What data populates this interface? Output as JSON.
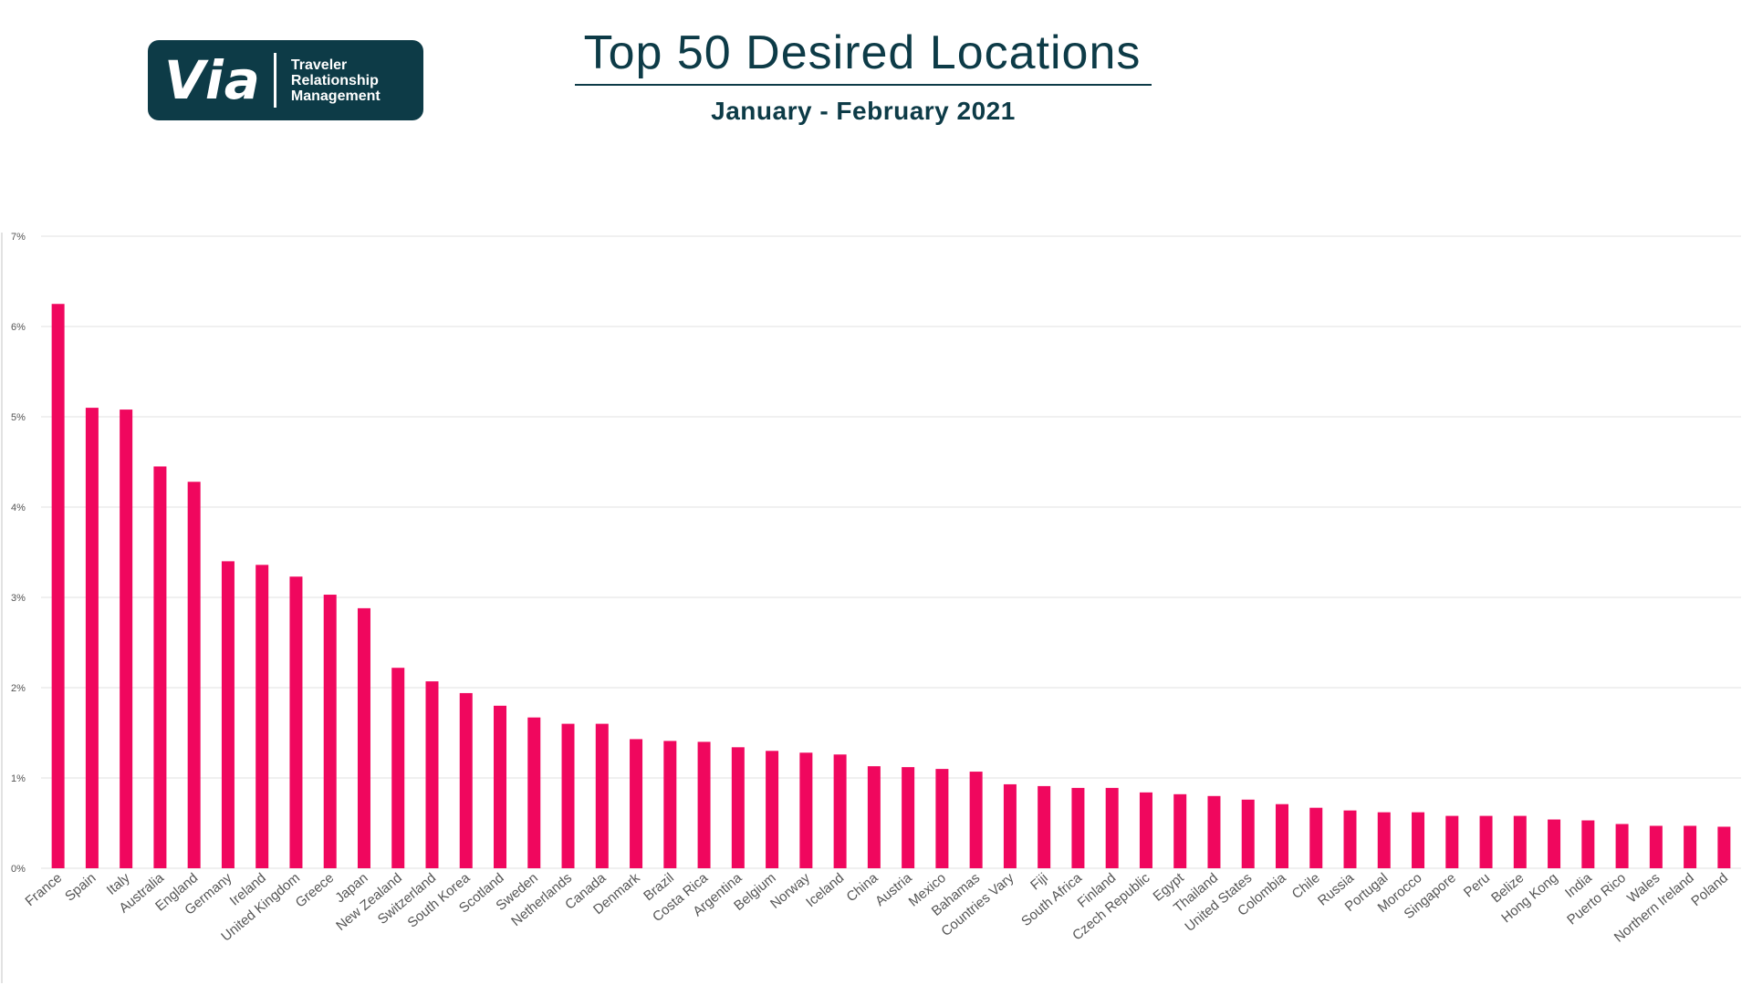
{
  "logo": {
    "word": "Via",
    "lines": [
      "Traveler",
      "Relationship",
      "Management"
    ]
  },
  "header": {
    "title": "Top 50 Desired Locations",
    "subtitle": "January - February 2021"
  },
  "colors": {
    "bar": "#f0075e",
    "brand": "#0d3b47",
    "grid": "#e2e2e2",
    "tick_text": "#555555"
  },
  "chart_data": {
    "type": "bar",
    "title": "Top 50 Desired Locations",
    "subtitle": "January - February 2021",
    "xlabel": "",
    "ylabel": "",
    "ylim": [
      0,
      7
    ],
    "yticks": [
      0,
      1,
      2,
      3,
      4,
      5,
      6,
      7
    ],
    "ytick_labels": [
      "0%",
      "1%",
      "2%",
      "3%",
      "4%",
      "5%",
      "6%",
      "7%"
    ],
    "grid": true,
    "legend": "none",
    "categories": [
      "France",
      "Spain",
      "Italy",
      "Australia",
      "England",
      "Germany",
      "Ireland",
      "United Kingdom",
      "Greece",
      "Japan",
      "New Zealand",
      "Switzerland",
      "South Korea",
      "Scotland",
      "Sweden",
      "Netherlands",
      "Canada",
      "Denmark",
      "Brazil",
      "Costa Rica",
      "Argentina",
      "Belgium",
      "Norway",
      "Iceland",
      "China",
      "Austria",
      "Mexico",
      "Bahamas",
      "Countries Vary",
      "Fiji",
      "South Africa",
      "Finland",
      "Czech Republic",
      "Egypt",
      "Thailand",
      "United States",
      "Colombia",
      "Chile",
      "Russia",
      "Portugal",
      "Morocco",
      "Singapore",
      "Peru",
      "Belize",
      "Hong Kong",
      "India",
      "Puerto Rico",
      "Wales",
      "Northern Ireland",
      "Poland"
    ],
    "values": [
      6.25,
      5.1,
      5.08,
      4.45,
      4.28,
      3.4,
      3.36,
      3.23,
      3.03,
      2.88,
      2.22,
      2.07,
      1.94,
      1.8,
      1.67,
      1.6,
      1.6,
      1.43,
      1.41,
      1.4,
      1.34,
      1.3,
      1.28,
      1.26,
      1.13,
      1.12,
      1.1,
      1.07,
      0.93,
      0.91,
      0.89,
      0.89,
      0.84,
      0.82,
      0.8,
      0.76,
      0.71,
      0.67,
      0.64,
      0.62,
      0.62,
      0.58,
      0.58,
      0.58,
      0.54,
      0.53,
      0.49,
      0.47,
      0.47,
      0.46
    ]
  }
}
